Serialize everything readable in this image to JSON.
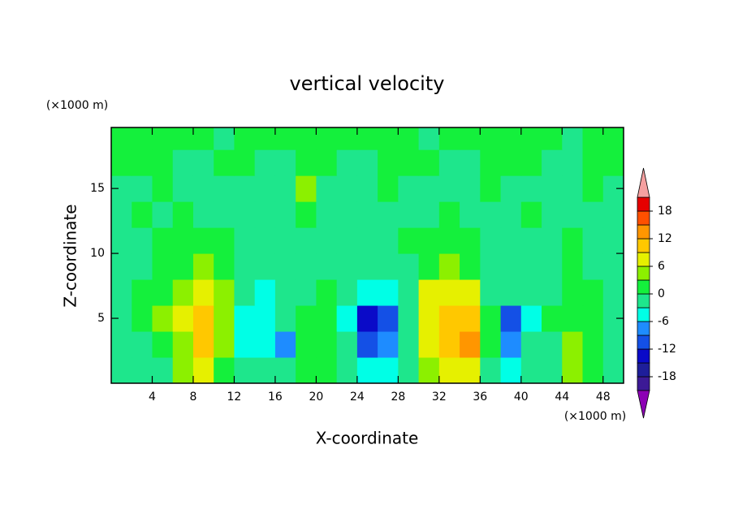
{
  "chart_data": {
    "type": "contour",
    "title": "vertical velocity",
    "xlabel": "X-coordinate",
    "ylabel": "Z-coordinate",
    "x_unit_label": "(×1000 m)",
    "y_unit_label": "(×1000 m)",
    "xlim": [
      0,
      50
    ],
    "ylim": [
      0,
      19.7
    ],
    "xticks": [
      4,
      8,
      12,
      16,
      20,
      24,
      28,
      32,
      36,
      40,
      44,
      48
    ],
    "yticks": [
      5,
      10,
      15
    ],
    "x": [
      1,
      3,
      5,
      7,
      9,
      11,
      13,
      15,
      17,
      19,
      21,
      23,
      25,
      27,
      29,
      31,
      33,
      35,
      37,
      39,
      41,
      43,
      45,
      47,
      49
    ],
    "y": [
      1,
      3,
      5,
      7,
      9,
      11,
      13,
      15,
      17,
      19
    ],
    "z": [
      [
        -1,
        -2,
        -1,
        3,
        7,
        2,
        -3,
        -3,
        -2,
        1,
        2,
        -1,
        -6,
        -5,
        -2,
        5,
        8,
        7,
        -1,
        -4,
        -2,
        -1,
        3,
        1,
        -1
      ],
      [
        -2,
        -2,
        1,
        5,
        11,
        4,
        -4,
        -4,
        -7,
        0,
        2,
        -3,
        -12,
        -9,
        -3,
        7,
        10,
        12,
        1,
        -9,
        -3,
        -1,
        5,
        2,
        -1
      ],
      [
        -1,
        0,
        3,
        7,
        10,
        4,
        -4,
        -5,
        -3,
        0,
        1,
        -4,
        -13,
        -10,
        -3,
        8,
        10,
        9,
        0,
        -12,
        -4,
        0,
        2,
        1,
        -1
      ],
      [
        -1,
        0,
        2,
        5,
        8,
        3,
        -3,
        -4,
        -3,
        -1,
        0,
        -3,
        -5,
        -5,
        -1,
        6,
        8,
        6,
        -1,
        -3,
        -3,
        -1,
        0,
        0,
        -1
      ],
      [
        -1,
        -1,
        1,
        2,
        3,
        1,
        -2,
        -3,
        -2,
        -1,
        -1,
        -2,
        -2,
        -2,
        -1,
        2,
        3,
        2,
        -1,
        -2,
        -1,
        -1,
        0,
        -1,
        -1
      ],
      [
        -1,
        -1,
        0,
        1,
        1,
        0,
        -1,
        -2,
        -1,
        -1,
        -1,
        -1,
        -1,
        -1,
        0,
        1,
        1,
        1,
        -1,
        -1,
        -1,
        -1,
        0,
        -1,
        -1
      ],
      [
        -1,
        0,
        -1,
        0,
        -1,
        -1,
        -2,
        -2,
        -1,
        0,
        -1,
        -1,
        -1,
        -1,
        -1,
        -1,
        0,
        -1,
        -1,
        -1,
        0,
        -1,
        -1,
        -1,
        -1
      ],
      [
        -1,
        -1,
        0,
        -1,
        -1,
        -1,
        -1,
        -2,
        -1,
        3,
        -1,
        -1,
        -1,
        0,
        -1,
        -1,
        -1,
        -1,
        0,
        -1,
        -1,
        -1,
        -1,
        0,
        -1
      ],
      [
        1,
        1,
        0,
        -1,
        -1,
        1,
        0,
        -1,
        -1,
        0,
        1,
        -1,
        -1,
        0,
        1,
        1,
        -1,
        -1,
        0,
        1,
        1,
        -1,
        -1,
        0,
        1
      ],
      [
        1,
        0,
        1,
        1,
        0,
        -1,
        1,
        1,
        0,
        1,
        1,
        0,
        1,
        1,
        1,
        -1,
        1,
        1,
        0,
        1,
        1,
        1,
        -1,
        1,
        1
      ]
    ],
    "colorbar": {
      "levels": [
        -21,
        -18,
        -15,
        -12,
        -9,
        -6,
        -3,
        0,
        3,
        6,
        9,
        12,
        15,
        18,
        21
      ],
      "colors": [
        "#3c1a96",
        "#1e1e9a",
        "#0a0ac8",
        "#1450e6",
        "#1e8cff",
        "#00ffe6",
        "#1ee68c",
        "#14f03c",
        "#8cf000",
        "#e6f000",
        "#ffc800",
        "#ff9600",
        "#ff5000",
        "#e60000"
      ],
      "under_color": "#8c00b4",
      "over_color": "#f5a0a0",
      "ticks": [
        -18,
        -12,
        -6,
        0,
        6,
        12,
        18
      ]
    }
  }
}
